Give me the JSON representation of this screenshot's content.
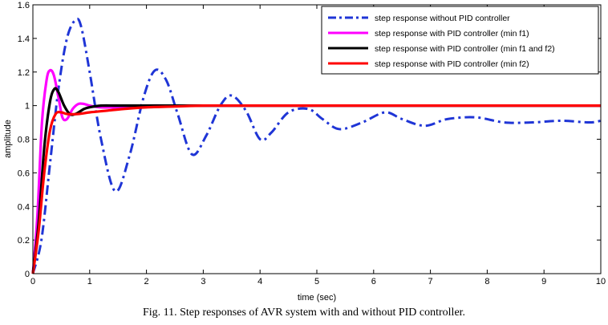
{
  "chart_data": {
    "type": "line",
    "title": "",
    "xlabel": "time (sec)",
    "ylabel": "amplitude",
    "xlim": [
      0,
      10
    ],
    "ylim": [
      0,
      1.6
    ],
    "xticks": [
      0,
      1,
      2,
      3,
      4,
      5,
      6,
      7,
      8,
      9,
      10
    ],
    "yticks": [
      0,
      0.2,
      0.4,
      0.6,
      0.8,
      1,
      1.2,
      1.4,
      1.6
    ],
    "xtick_labels": [
      "0",
      "1",
      "2",
      "3",
      "4",
      "5",
      "6",
      "7",
      "8",
      "9",
      "10"
    ],
    "ytick_labels": [
      "0",
      "0.2",
      "0.4",
      "0.6",
      "0.8",
      "1",
      "1.2",
      "1.4",
      "1.6"
    ],
    "grid": false,
    "legend_position": "top-right",
    "series": [
      {
        "name": "step response without PID controller",
        "color": "#1f35d6",
        "style": "dashdot",
        "x": [
          0,
          0.15,
          0.3,
          0.45,
          0.6,
          0.75,
          0.85,
          1.0,
          1.2,
          1.45,
          1.7,
          1.95,
          2.15,
          2.35,
          2.55,
          2.8,
          3.05,
          3.3,
          3.5,
          3.75,
          4.0,
          4.2,
          4.5,
          4.85,
          5.1,
          5.4,
          5.8,
          6.2,
          6.5,
          6.9,
          7.3,
          7.8,
          8.3,
          8.8,
          9.3,
          9.8,
          10
        ],
        "values": [
          0,
          0.2,
          0.65,
          1.1,
          1.4,
          1.51,
          1.47,
          1.2,
          0.8,
          0.49,
          0.7,
          1.05,
          1.21,
          1.15,
          0.95,
          0.71,
          0.82,
          1.0,
          1.06,
          0.97,
          0.8,
          0.84,
          0.96,
          0.98,
          0.92,
          0.86,
          0.9,
          0.96,
          0.92,
          0.88,
          0.92,
          0.93,
          0.9,
          0.9,
          0.91,
          0.9,
          0.91
        ]
      },
      {
        "name": "step response with PID controller (min f1)",
        "color": "#ff00ff",
        "style": "solid",
        "x": [
          0,
          0.08,
          0.16,
          0.24,
          0.3,
          0.37,
          0.45,
          0.52,
          0.6,
          0.7,
          0.8,
          0.9,
          1.0,
          1.2,
          1.5,
          2.0,
          2.5,
          3.0,
          4.0,
          6.0,
          8.0,
          10.0
        ],
        "values": [
          0,
          0.35,
          0.9,
          1.15,
          1.21,
          1.18,
          1.05,
          0.93,
          0.92,
          0.98,
          1.01,
          1.01,
          1.0,
          0.99,
          0.99,
          1.0,
          1.0,
          1.0,
          1.0,
          1.0,
          1.0,
          1.0
        ]
      },
      {
        "name": "step response with PID controller (min f1 and f2)",
        "color": "#000000",
        "style": "solid",
        "x": [
          0,
          0.1,
          0.2,
          0.3,
          0.38,
          0.45,
          0.55,
          0.65,
          0.75,
          0.9,
          1.0,
          1.2,
          1.5,
          2.0,
          2.5,
          3.0,
          4.0,
          6.0,
          8.0,
          10.0
        ],
        "values": [
          0,
          0.3,
          0.75,
          1.02,
          1.1,
          1.08,
          1.0,
          0.95,
          0.95,
          0.98,
          0.99,
          1.0,
          1.0,
          1.0,
          1.0,
          1.0,
          1.0,
          1.0,
          1.0,
          1.0
        ]
      },
      {
        "name": "step response with PID controller (min f2)",
        "color": "#ff0000",
        "style": "solid",
        "x": [
          0,
          0.1,
          0.2,
          0.3,
          0.4,
          0.5,
          0.6,
          0.8,
          1.0,
          1.3,
          1.6,
          2.0,
          2.5,
          3.0,
          3.5,
          4.0,
          6.0,
          8.0,
          10.0
        ],
        "values": [
          0,
          0.25,
          0.6,
          0.85,
          0.95,
          0.96,
          0.95,
          0.95,
          0.96,
          0.97,
          0.98,
          0.99,
          0.995,
          1.0,
          1.0,
          1.0,
          1.0,
          1.0,
          1.0
        ]
      }
    ]
  },
  "caption": "Fig. 11. Step responses of AVR system with and without PID controller."
}
